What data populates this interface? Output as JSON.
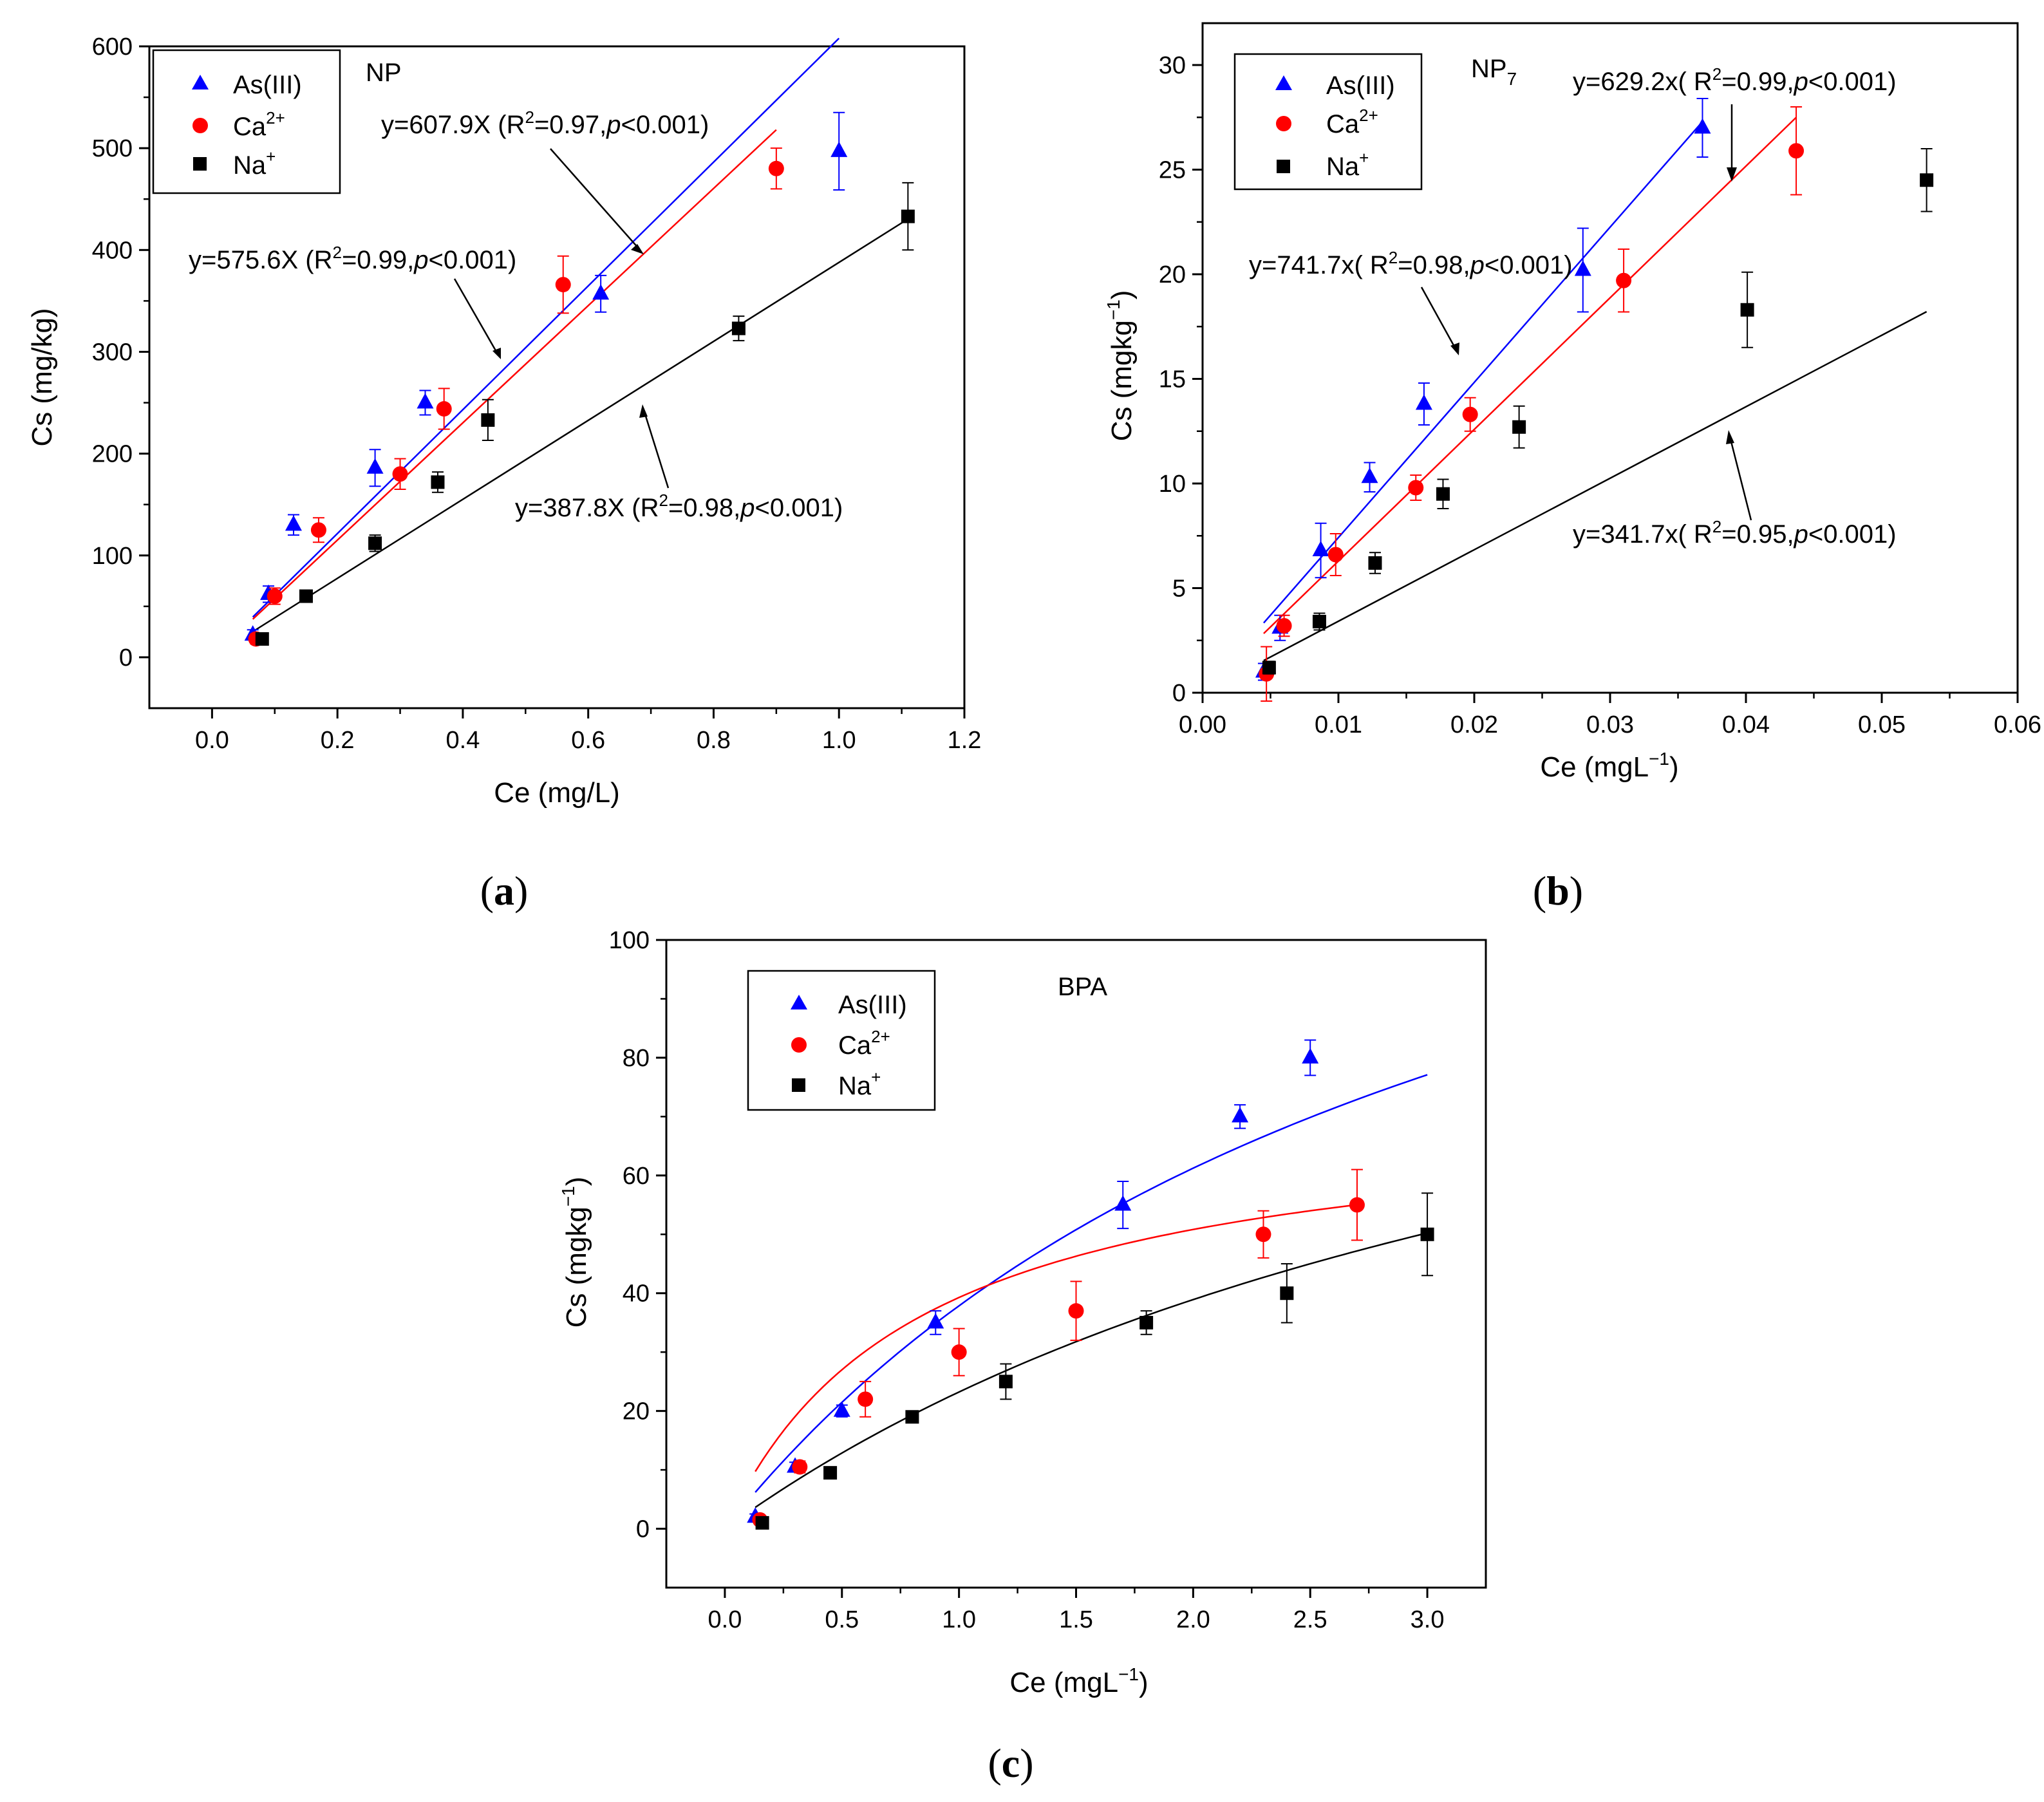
{
  "colors": {
    "as": "#0000ff",
    "ca": "#ff0000",
    "na": "#000000",
    "axis": "#000000"
  },
  "panel_labels": [
    "(a)",
    "(b)",
    "(c)"
  ],
  "chart_data": [
    {
      "id": "a",
      "type": "scatter",
      "title": "NP",
      "xlabel": "Ce (mg/L)",
      "ylabel": "Cs (mg/kg)",
      "xlim": [
        -0.1,
        1.2
      ],
      "ylim": [
        -50,
        600
      ],
      "xticks": [
        "0.0",
        "0.2",
        "0.4",
        "0.6",
        "0.8",
        "1.0",
        "1.2"
      ],
      "yticks": [
        "0",
        "100",
        "200",
        "300",
        "400",
        "500",
        "600"
      ],
      "legend": [
        "As(III)",
        "Ca2+",
        "Na+"
      ],
      "series": [
        {
          "name": "As(III)",
          "marker": "triangle",
          "color": "as",
          "x": [
            0.065,
            0.09,
            0.13,
            0.26,
            0.34,
            0.62,
            1.0
          ],
          "y": [
            22,
            62,
            130,
            186,
            250,
            357,
            497
          ],
          "err": [
            5,
            8,
            10,
            18,
            12,
            18,
            38
          ],
          "fit": {
            "slope": 607.9,
            "x0": 0.065,
            "x1": 1.0
          }
        },
        {
          "name": "Ca2+",
          "marker": "circle",
          "color": "ca",
          "x": [
            0.07,
            0.1,
            0.17,
            0.3,
            0.37,
            0.56,
            0.9
          ],
          "y": [
            18,
            60,
            125,
            180,
            244,
            366,
            480
          ],
          "err": [
            5,
            8,
            12,
            15,
            20,
            28,
            20
          ],
          "fit": {
            "slope": 575.6,
            "x0": 0.065,
            "x1": 0.9
          }
        },
        {
          "name": "Na+",
          "marker": "square",
          "color": "na",
          "x": [
            0.08,
            0.15,
            0.26,
            0.36,
            0.44,
            0.84,
            1.11
          ],
          "y": [
            18,
            60,
            112,
            172,
            233,
            323,
            433
          ],
          "err": [
            3,
            4,
            8,
            10,
            20,
            12,
            33
          ],
          "fit": {
            "slope": 387.8,
            "x0": 0.06,
            "x1": 1.11
          }
        }
      ],
      "annotations": [
        {
          "pre": "y=607.9X (R",
          "post": "=0.97,",
          "p": "p",
          "tail": "<0.001)"
        },
        {
          "pre": "y=575.6X (R",
          "post": "=0.99,",
          "p": "p",
          "tail": "<0.001)"
        },
        {
          "pre": "y=387.8X (R",
          "post": "=0.98,",
          "p": "p",
          "tail": "<0.001)"
        }
      ]
    },
    {
      "id": "b",
      "type": "scatter",
      "title": "NP",
      "title_sub": "7",
      "xlabel": "Ce (mgL",
      "xlabel_sup": "−1",
      "xlabel_tail": ")",
      "ylabel": "Cs (mgkg",
      "ylabel_sup": "−1",
      "ylabel_tail": ")",
      "xlim": [
        0.0,
        0.06
      ],
      "ylim": [
        0,
        32
      ],
      "xticks": [
        "0.00",
        "0.01",
        "0.02",
        "0.03",
        "0.04",
        "0.05",
        "0.06"
      ],
      "yticks": [
        "0",
        "5",
        "10",
        "15",
        "20",
        "25",
        "30"
      ],
      "legend": [
        "As(III)",
        "Ca2+",
        "Na+"
      ],
      "series": [
        {
          "name": "As(III)",
          "marker": "triangle",
          "color": "as",
          "x": [
            0.0045,
            0.0057,
            0.0087,
            0.0123,
            0.0163,
            0.028,
            0.0368
          ],
          "y": [
            1.0,
            3.1,
            6.8,
            10.3,
            13.8,
            20.2,
            27.0
          ],
          "err": [
            0.4,
            0.6,
            1.3,
            0.7,
            1.0,
            2.0,
            1.4
          ],
          "fit": {
            "slope": 741.7,
            "x0": 0.0045,
            "x1": 0.0368
          }
        },
        {
          "name": "Ca2+",
          "marker": "circle",
          "color": "ca",
          "x": [
            0.0047,
            0.006,
            0.0098,
            0.0157,
            0.0197,
            0.031,
            0.0437
          ],
          "y": [
            0.9,
            3.2,
            6.6,
            9.8,
            13.3,
            19.7,
            25.9
          ],
          "err": [
            1.3,
            0.5,
            1.0,
            0.6,
            0.8,
            1.5,
            2.1
          ],
          "fit": {
            "slope": 629.2,
            "x0": 0.0045,
            "x1": 0.0437
          }
        },
        {
          "name": "Na+",
          "marker": "square",
          "color": "na",
          "x": [
            0.0049,
            0.0086,
            0.0127,
            0.0177,
            0.0233,
            0.0401,
            0.0533
          ],
          "y": [
            1.2,
            3.4,
            6.2,
            9.5,
            12.7,
            18.3,
            24.5
          ],
          "err": [
            0.3,
            0.4,
            0.5,
            0.7,
            1.0,
            1.8,
            1.5
          ],
          "fit": {
            "slope": 341.7,
            "x0": 0.0045,
            "x1": 0.0533
          }
        }
      ],
      "annotations": [
        {
          "pre": "y=629.2x( R",
          "post": "=0.99,",
          "p": "p",
          "tail": "<0.001)"
        },
        {
          "pre": "y=741.7x( R",
          "post": "=0.98,",
          "p": "p",
          "tail": "<0.001)"
        },
        {
          "pre": "y=341.7x( R",
          "post": "=0.95,",
          "p": "p",
          "tail": "<0.001)"
        }
      ]
    },
    {
      "id": "c",
      "type": "scatter",
      "title": "BPA",
      "xlabel": "Ce (mgL",
      "xlabel_sup": "−1",
      "xlabel_tail": ")",
      "ylabel": "Cs (mgkg",
      "ylabel_sup": "−1",
      "ylabel_tail": ")",
      "xlim": [
        -0.25,
        3.25
      ],
      "ylim": [
        -10,
        100
      ],
      "xticks": [
        "0.0",
        "0.5",
        "1.0",
        "1.5",
        "2.0",
        "2.5",
        "3.0"
      ],
      "yticks": [
        "0",
        "20",
        "40",
        "60",
        "80",
        "100"
      ],
      "legend": [
        "As(III)",
        "Ca2+",
        "Na+"
      ],
      "series": [
        {
          "name": "As(III)",
          "marker": "triangle",
          "color": "as",
          "x": [
            0.13,
            0.3,
            0.5,
            0.9,
            1.7,
            2.2,
            2.5
          ],
          "y": [
            2,
            10.5,
            20,
            35,
            55,
            70,
            80
          ],
          "err": [
            0.5,
            0.8,
            1,
            2,
            4,
            2,
            3
          ],
          "fit": {
            "qmax": 160,
            "k": 0.31,
            "x0": 0.13,
            "x1": 3.0
          }
        },
        {
          "name": "Ca2+",
          "marker": "circle",
          "color": "ca",
          "x": [
            0.15,
            0.32,
            0.6,
            1.0,
            1.5,
            2.3,
            2.7
          ],
          "y": [
            1.5,
            10.5,
            22,
            30,
            37,
            50,
            55
          ],
          "err": [
            0.5,
            1,
            3,
            4,
            5,
            4,
            6
          ],
          "fit": {
            "qmax": 72,
            "k": 1.2,
            "x0": 0.13,
            "x1": 2.7
          }
        },
        {
          "name": "Na+",
          "marker": "square",
          "color": "na",
          "x": [
            0.16,
            0.45,
            0.8,
            1.2,
            1.8,
            2.4,
            3.0
          ],
          "y": [
            1,
            9.5,
            19,
            25,
            35,
            40,
            50
          ],
          "err": [
            0.5,
            0.8,
            1,
            3,
            2,
            5,
            7
          ],
          "fit": {
            "qmax": 120,
            "k": 0.24,
            "x0": 0.13,
            "x1": 3.0
          }
        }
      ],
      "annotations": []
    }
  ]
}
